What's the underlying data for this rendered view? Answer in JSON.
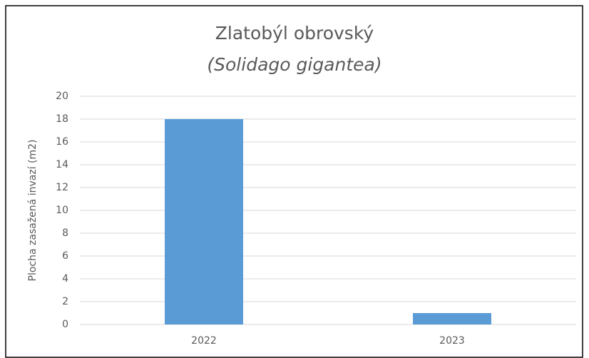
{
  "chart_data": {
    "type": "bar",
    "title": "Zlatobýl obrovský",
    "subtitle": "(Solidago gigantea)",
    "y_label": "Plocha zasažená invazí (m2)",
    "categories": [
      "2022",
      "2023"
    ],
    "values": [
      18,
      1
    ],
    "color": "#5b9bd5",
    "ylim": [
      0,
      20
    ],
    "yticks": [
      0,
      2,
      4,
      6,
      8,
      10,
      12,
      14,
      16,
      18,
      20
    ],
    "grid": true
  }
}
